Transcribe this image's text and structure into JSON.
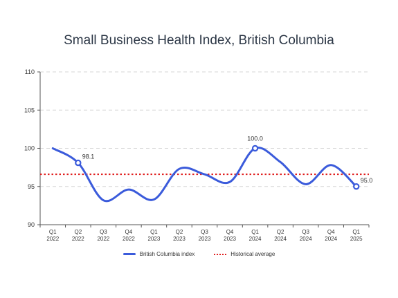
{
  "chart_data": {
    "type": "line",
    "title": "Small Business Health Index, British Columbia",
    "categories": [
      [
        "Q1",
        "2022"
      ],
      [
        "Q2",
        "2022"
      ],
      [
        "Q3",
        "2022"
      ],
      [
        "Q4",
        "2022"
      ],
      [
        "Q1",
        "2023"
      ],
      [
        "Q2",
        "2023"
      ],
      [
        "Q3",
        "2023"
      ],
      [
        "Q4",
        "2023"
      ],
      [
        "Q1",
        "2024"
      ],
      [
        "Q2",
        "2024"
      ],
      [
        "Q3",
        "2024"
      ],
      [
        "Q4",
        "2024"
      ],
      [
        "Q1",
        "2025"
      ]
    ],
    "ylim": [
      90,
      110
    ],
    "yticks": [
      90,
      95,
      100,
      105,
      110
    ],
    "grid": true,
    "legend_position": "bottom",
    "series": [
      {
        "name": "British Columbia index",
        "values": [
          100.0,
          98.1,
          93.2,
          94.6,
          93.3,
          97.3,
          96.6,
          95.6,
          100.0,
          98.2,
          95.3,
          97.8,
          95.0
        ],
        "color": "#3b5bdb"
      },
      {
        "name": "Historical average",
        "values": [
          96.6,
          96.6,
          96.6,
          96.6,
          96.6,
          96.6,
          96.6,
          96.6,
          96.6,
          96.6,
          96.6,
          96.6,
          96.6
        ],
        "color": "#e02020",
        "style": "dotted"
      }
    ],
    "annotations": [
      {
        "index": 1,
        "label": "98.1"
      },
      {
        "index": 8,
        "label": "100.0"
      },
      {
        "index": 12,
        "label": "95.0"
      }
    ]
  }
}
